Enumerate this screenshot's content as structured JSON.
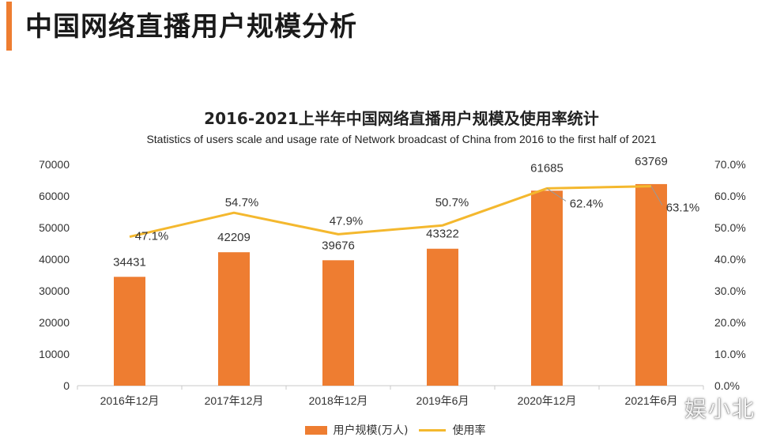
{
  "page": {
    "title": "中国网络直播用户规模分析",
    "accent_color": "#ee7d31"
  },
  "chart_data": {
    "type": "bar",
    "title": "2016-2021上半年中国网络直播用户规模及使用率统计",
    "subtitle": "Statistics of users scale and usage rate of Network broadcast of China from 2016 to the first half of 2021",
    "categories": [
      "2016年12月",
      "2017年12月",
      "2018年12月",
      "2019年6月",
      "2020年12月",
      "2021年6月"
    ],
    "series": [
      {
        "name": "用户规模(万人)",
        "type": "bar",
        "axis": "left",
        "color": "#ee7d31",
        "values": [
          34431,
          42209,
          39676,
          43322,
          61685,
          63769
        ],
        "labels": [
          "34431",
          "42209",
          "39676",
          "43322",
          "61685",
          "63769"
        ]
      },
      {
        "name": "使用率",
        "type": "line",
        "axis": "right",
        "color": "#f4b82e",
        "values": [
          47.1,
          54.7,
          47.9,
          50.7,
          62.4,
          63.1
        ],
        "labels": [
          "47.1%",
          "54.7%",
          "47.9%",
          "50.7%",
          "62.4%",
          "63.1%"
        ]
      }
    ],
    "y_left": {
      "min": 0,
      "max": 70000,
      "ticks": [
        "0",
        "10000",
        "20000",
        "30000",
        "40000",
        "50000",
        "60000",
        "70000"
      ]
    },
    "y_right": {
      "min": 0,
      "max": 70,
      "ticks": [
        "0.0%",
        "10.0%",
        "20.0%",
        "30.0%",
        "40.0%",
        "50.0%",
        "60.0%",
        "70.0%"
      ]
    },
    "grid": false,
    "legend_position": "bottom"
  },
  "legend": {
    "bar_label": "用户规模(万人)",
    "line_label": "使用率"
  },
  "watermark": "娱小北"
}
